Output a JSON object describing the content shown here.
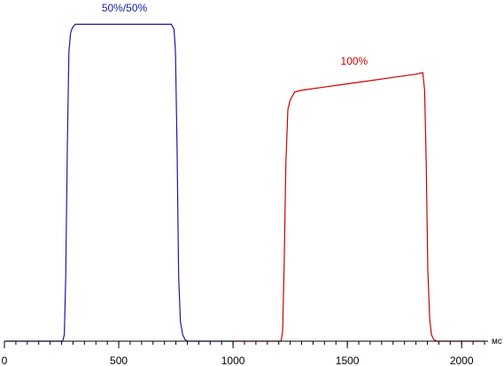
{
  "chart_data": {
    "type": "line",
    "title": "",
    "xlabel": "",
    "ylabel": "",
    "x_unit": "мс",
    "xlim": [
      0,
      2100
    ],
    "ylim": [
      0,
      1
    ],
    "x_ticks": [
      0,
      500,
      1000,
      1500,
      2000
    ],
    "x_tick_labels": [
      "0",
      "500",
      "1000",
      "1500",
      "2000"
    ],
    "grid": false,
    "series": [
      {
        "name": "50%/50%",
        "color": "#1a1aaa",
        "x": [
          0,
          255,
          262,
          268,
          275,
          282,
          290,
          298,
          310,
          330,
          400,
          500,
          600,
          700,
          730,
          742,
          748,
          755,
          762,
          770,
          780,
          790,
          800,
          850,
          1000
        ],
        "y": [
          0.0,
          0.0,
          0.02,
          0.2,
          0.6,
          0.9,
          0.96,
          0.975,
          0.985,
          0.985,
          0.985,
          0.985,
          0.985,
          0.985,
          0.985,
          0.97,
          0.9,
          0.6,
          0.2,
          0.06,
          0.02,
          0.005,
          0.0,
          0.0,
          0.0
        ]
      },
      {
        "name": "100%",
        "color": "#cc0000",
        "x": [
          1000,
          1210,
          1217,
          1224,
          1231,
          1240,
          1250,
          1270,
          1300,
          1400,
          1500,
          1600,
          1700,
          1800,
          1830,
          1838,
          1845,
          1852,
          1860,
          1868,
          1878,
          1890,
          1950,
          2100
        ],
        "y": [
          0.0,
          0.0,
          0.03,
          0.25,
          0.55,
          0.72,
          0.75,
          0.775,
          0.78,
          0.79,
          0.8,
          0.81,
          0.82,
          0.83,
          0.835,
          0.78,
          0.55,
          0.22,
          0.07,
          0.02,
          0.005,
          0.0,
          0.0,
          0.0
        ]
      }
    ],
    "annotations": [
      {
        "text": "50%/50%",
        "x": 525,
        "y": 1.025,
        "color": "#1a1aaa"
      },
      {
        "text": "100%",
        "x": 1530,
        "y": 0.86,
        "color": "#cc0000"
      }
    ]
  }
}
